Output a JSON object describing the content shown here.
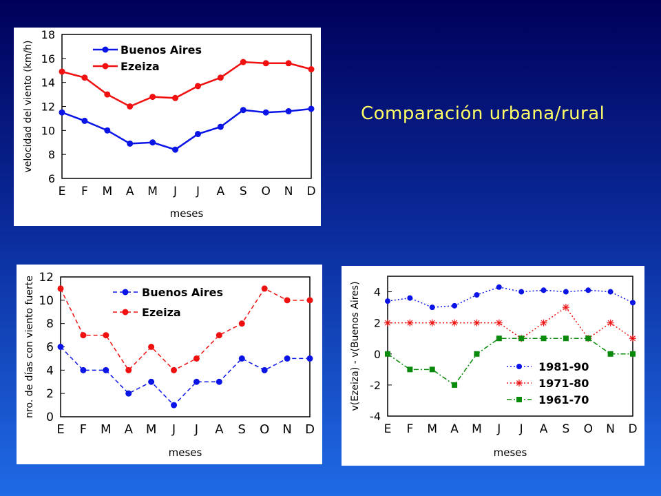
{
  "slide": {
    "title": "Comparación urbana/rural"
  },
  "chart_data": [
    {
      "type": "line",
      "xlabel": "meses",
      "ylabel": "velocidad del viento (km/h)",
      "categories": [
        "E",
        "F",
        "M",
        "A",
        "M",
        "J",
        "J",
        "A",
        "S",
        "O",
        "N",
        "D"
      ],
      "ylim": [
        6,
        18
      ],
      "yticks": [
        6,
        8,
        10,
        12,
        14,
        16,
        18
      ],
      "legend_position": "top-left",
      "grid": false,
      "series": [
        {
          "name": "Buenos Aires",
          "color": "#0a14e6",
          "dash": "solid",
          "marker": "circle",
          "values": [
            11.5,
            10.8,
            10.0,
            8.9,
            9.0,
            8.4,
            9.7,
            10.3,
            11.7,
            11.5,
            11.6,
            11.8
          ]
        },
        {
          "name": "Ezeiza",
          "color": "#f01010",
          "dash": "solid",
          "marker": "circle",
          "values": [
            14.9,
            14.4,
            13.0,
            12.0,
            12.8,
            12.7,
            13.7,
            14.4,
            15.7,
            15.6,
            15.6,
            15.1
          ]
        }
      ]
    },
    {
      "type": "line",
      "xlabel": "meses",
      "ylabel": "nro. de días con viento fuerte",
      "categories": [
        "E",
        "F",
        "M",
        "A",
        "M",
        "J",
        "J",
        "A",
        "S",
        "O",
        "N",
        "D"
      ],
      "ylim": [
        0,
        12
      ],
      "yticks": [
        0,
        2,
        4,
        6,
        8,
        10,
        12
      ],
      "legend_position": "top-right",
      "grid": false,
      "series": [
        {
          "name": "Buenos Aires",
          "color": "#0a14e6",
          "dash": "dashed",
          "marker": "circle",
          "values": [
            6,
            4,
            4,
            2,
            3,
            1,
            3,
            3,
            5,
            4,
            5,
            5
          ]
        },
        {
          "name": "Ezeiza",
          "color": "#f01010",
          "dash": "dashed",
          "marker": "circle",
          "values": [
            11,
            7,
            7,
            4,
            6,
            4,
            5,
            7,
            8,
            11,
            10,
            10
          ]
        }
      ]
    },
    {
      "type": "line",
      "xlabel": "meses",
      "ylabel": "v(Ezeiza) - v(Buenos Aires)",
      "categories": [
        "E",
        "F",
        "M",
        "A",
        "M",
        "J",
        "J",
        "A",
        "S",
        "O",
        "N",
        "D"
      ],
      "ylim": [
        -4,
        5
      ],
      "yticks": [
        -4,
        -2,
        0,
        2,
        4
      ],
      "legend_position": "bottom-right",
      "grid": false,
      "series": [
        {
          "name": "1981-90",
          "color": "#0a14e6",
          "dash": "dotted",
          "marker": "circle",
          "values": [
            3.4,
            3.6,
            3.0,
            3.1,
            3.8,
            4.3,
            4.0,
            4.1,
            4.0,
            4.1,
            4.0,
            3.3
          ]
        },
        {
          "name": "1971-80",
          "color": "#f01010",
          "dash": "dotted",
          "marker": "star",
          "values": [
            2,
            2,
            2,
            2,
            2,
            2,
            1,
            2,
            3,
            1,
            2,
            1
          ]
        },
        {
          "name": "1961-70",
          "color": "#0a8a0a",
          "dash": "dashdot",
          "marker": "square",
          "values": [
            0,
            -1,
            -1,
            -2,
            0,
            1,
            1,
            1,
            1,
            1,
            0,
            0
          ]
        }
      ]
    }
  ]
}
